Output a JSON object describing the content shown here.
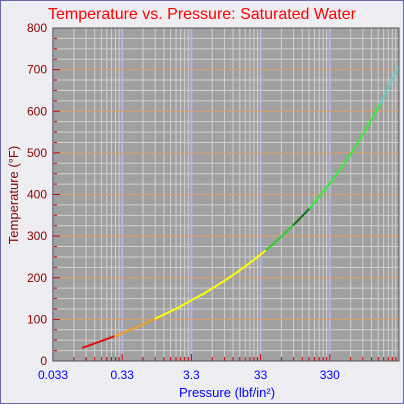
{
  "chart_data": {
    "type": "line",
    "title": "Temperature vs. Pressure: Saturated Water",
    "xlabel": "Pressure (lbf/in²)",
    "ylabel": "Temperature (°F)",
    "x_scale": "log",
    "xlim": [
      0.033,
      3300
    ],
    "ylim": [
      0,
      800
    ],
    "x_ticks": [
      0.033,
      0.33,
      3.3,
      33,
      330
    ],
    "x_tick_labels": [
      "0.033",
      "0.33",
      "3.3",
      "33",
      "330"
    ],
    "y_ticks": [
      0,
      100,
      200,
      300,
      400,
      500,
      600,
      700,
      800
    ],
    "y_tick_labels": [
      "0",
      "100",
      "200",
      "300",
      "400",
      "500",
      "600",
      "700",
      "800"
    ],
    "grid": true,
    "colors": {
      "plot_background": "#a0a0a0",
      "title": "#ff0000",
      "x_axis_text": "#0000ff",
      "y_axis_text": "#8b0000",
      "grid_major": "#b4b4e6",
      "grid_minor": "#d0d0d0",
      "y_grid": "#d8a070"
    },
    "series": [
      {
        "color": "#dd1111",
        "x": [
          0.089,
          0.1,
          0.12,
          0.15,
          0.2,
          0.26
        ],
        "y": [
          32,
          35,
          40,
          46,
          53,
          60
        ]
      },
      {
        "color": "#f2a020",
        "x": [
          0.26,
          0.5,
          0.7,
          1.0
        ],
        "y": [
          60,
          79,
          90,
          102
        ]
      },
      {
        "color": "#ffff00",
        "x": [
          1.0,
          2.0,
          3.3,
          5,
          10,
          14.7,
          20,
          30,
          40
        ],
        "y": [
          102,
          126,
          146,
          162,
          193,
          212,
          228,
          250,
          267
        ]
      },
      {
        "color": "#33cc33",
        "x": [
          40,
          50,
          70,
          100
        ],
        "y": [
          267,
          281,
          303,
          328
        ]
      },
      {
        "color": "#117711",
        "x": [
          100,
          130,
          170
        ],
        "y": [
          328,
          347,
          367
        ]
      },
      {
        "color": "#33ee33",
        "x": [
          170,
          200,
          300,
          500,
          700,
          1000,
          1400,
          1800
        ],
        "y": [
          367,
          382,
          417,
          467,
          503,
          545,
          587,
          621
        ]
      },
      {
        "color": "#66cccc",
        "x": [
          1800,
          2200,
          2800,
          3200
        ],
        "y": [
          621,
          650,
          686,
          705
        ]
      }
    ]
  }
}
